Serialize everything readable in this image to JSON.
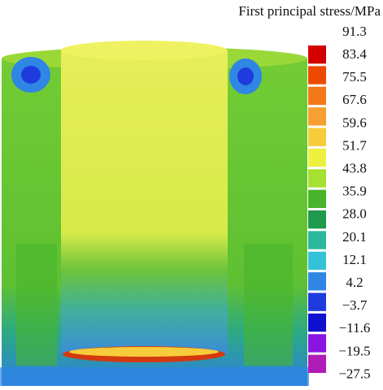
{
  "legend": {
    "title": "First principal stress/MPa",
    "labels": [
      "91.3",
      "83.4",
      "75.5",
      "67.6",
      "59.6",
      "51.7",
      "43.8",
      "35.9",
      "28.0",
      "20.1",
      "12.1",
      "4.2",
      "−3.7",
      "−11.6",
      "−19.5",
      "−27.5"
    ],
    "colors": [
      "#d40000",
      "#ec4a00",
      "#f27818",
      "#f5a030",
      "#f6cc3a",
      "#eef040",
      "#a6e030",
      "#48b42c",
      "#1f9a4c",
      "#2cb89c",
      "#34c2d8",
      "#2f86e4",
      "#1e3cde",
      "#1010d0",
      "#8a14e0",
      "#b01cb8"
    ]
  }
}
